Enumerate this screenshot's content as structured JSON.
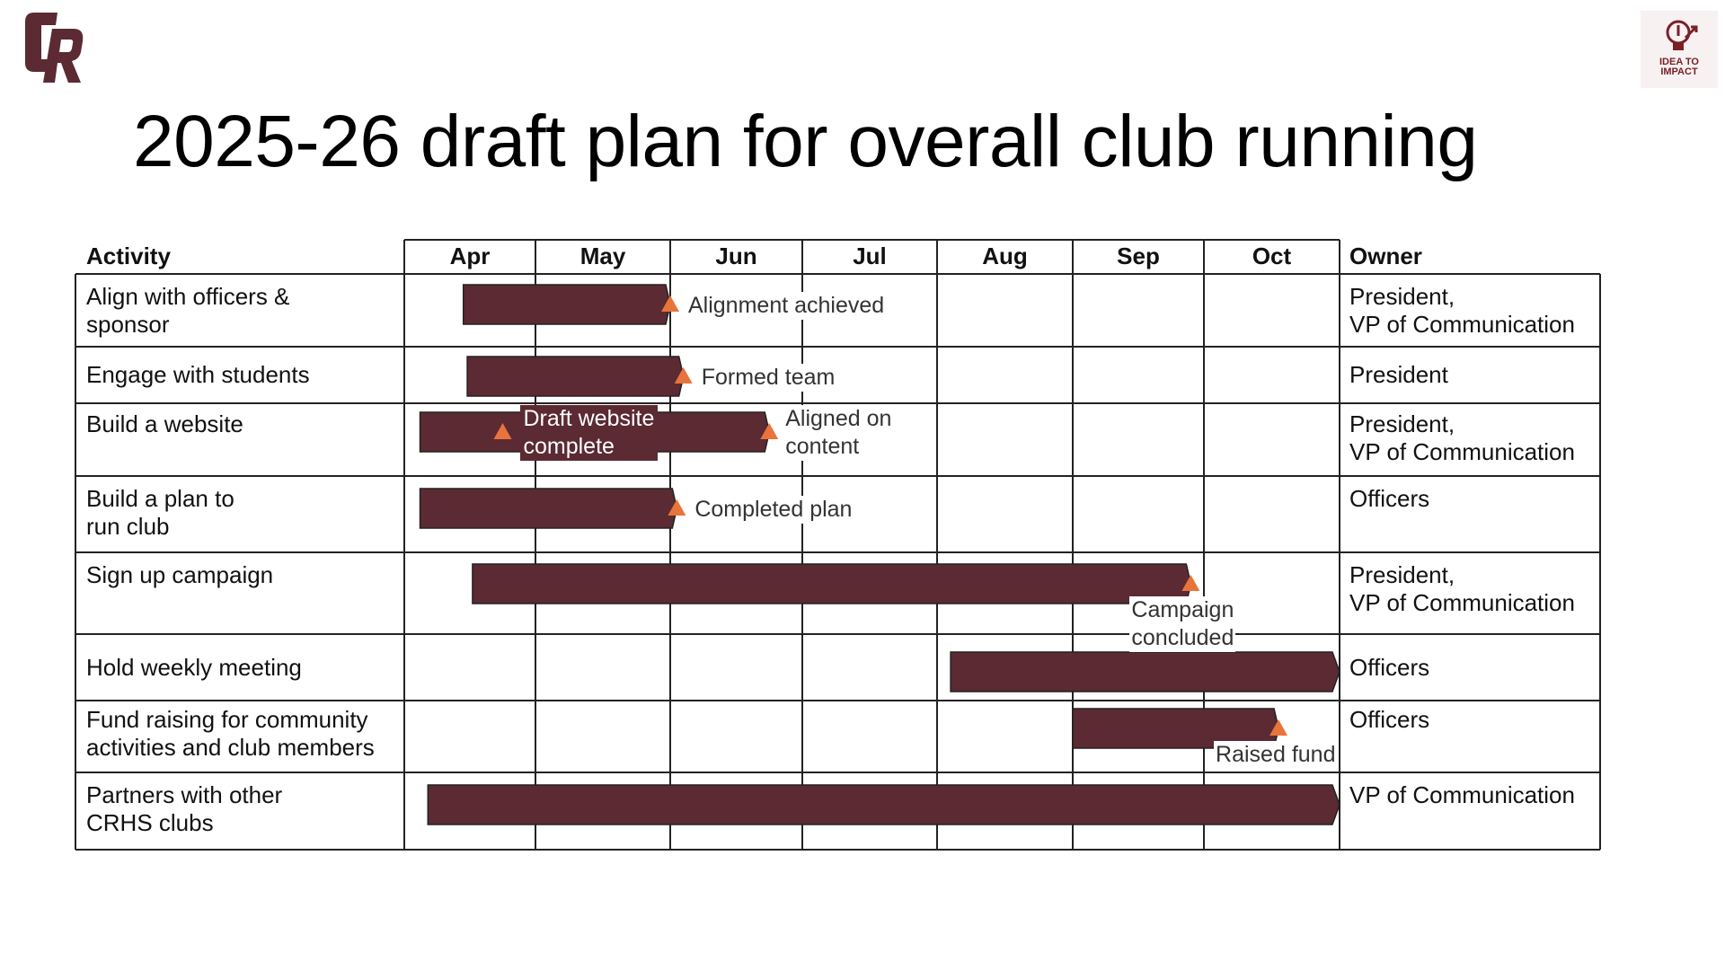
{
  "title": "2025-26 draft plan for overall club running",
  "logos": {
    "left": "CR",
    "right_line1": "IDEA TO",
    "right_line2": "IMPACT"
  },
  "colors": {
    "bar": "#5b2a33",
    "milestone": "#e8743b",
    "grid": "#222222",
    "brand": "#5b2a33"
  },
  "table": {
    "headers": {
      "activity": "Activity",
      "owner": "Owner"
    },
    "months": [
      "Apr",
      "May",
      "Jun",
      "Jul",
      "Aug",
      "Sep",
      "Oct"
    ],
    "rows": [
      {
        "activity": "Align with officers &\nsponsor",
        "owner": "President,\nVP of Communication",
        "start": 0.45,
        "end": 2.0,
        "arrow": false,
        "milestones": [
          {
            "at": 2.0,
            "label": "Alignment achieved"
          }
        ]
      },
      {
        "activity": "Engage with students",
        "owner": "President",
        "start": 0.48,
        "end": 2.1,
        "arrow": false,
        "milestones": [
          {
            "at": 2.1,
            "label": "Formed team"
          }
        ]
      },
      {
        "activity": "Build a website",
        "owner": "President,\nVP of Communication",
        "start": 0.12,
        "end": 2.75,
        "arrow": false,
        "milestones": [
          {
            "at": 0.75,
            "label": "Draft website\ncomplete"
          },
          {
            "at": 2.75,
            "label": "Aligned on\ncontent"
          }
        ]
      },
      {
        "activity": "Build a plan to\nrun club",
        "owner": "Officers",
        "start": 0.12,
        "end": 2.05,
        "arrow": false,
        "milestones": [
          {
            "at": 2.05,
            "label": "Completed plan"
          }
        ]
      },
      {
        "activity": "Sign up campaign",
        "owner": "President,\nVP of Communication",
        "start": 0.52,
        "end": 5.9,
        "arrow": false,
        "milestones": [
          {
            "at": 5.9,
            "label": "Campaign\n concluded"
          }
        ]
      },
      {
        "activity": "Hold weekly meeting",
        "owner": "Officers",
        "start": 4.1,
        "end": 7.0,
        "arrow": true,
        "milestones": []
      },
      {
        "activity": "Fund raising for community\nactivities and club members",
        "owner": "Officers",
        "start": 5.0,
        "end": 6.55,
        "arrow": false,
        "milestones": [
          {
            "at": 6.55,
            "label": "Raised fund"
          }
        ]
      },
      {
        "activity": "Partners with other\n CRHS clubs",
        "owner": "VP of Communication",
        "start": 0.18,
        "end": 7.0,
        "arrow": true,
        "milestones": []
      }
    ]
  }
}
